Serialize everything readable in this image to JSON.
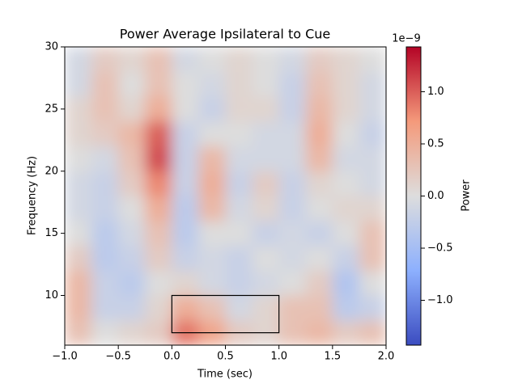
{
  "chart_data": {
    "type": "heatmap",
    "title": "Power Average Ipsilateral to Cue",
    "x_label": "Time (sec)",
    "y_label": "Frequency (Hz)",
    "colorbar_label": "Power",
    "colorbar_offset": "1e−9",
    "x": [
      -0.875,
      -0.625,
      -0.375,
      -0.125,
      0.125,
      0.375,
      0.625,
      0.875,
      1.125,
      1.375,
      1.625,
      1.875
    ],
    "y": [
      7,
      9,
      11,
      13,
      15,
      17,
      19,
      21,
      23,
      25,
      27,
      29
    ],
    "z": [
      [
        0.3,
        0.0,
        0.1,
        0.2,
        0.9,
        0.6,
        0.2,
        0.1,
        0.3,
        0.4,
        0.2,
        0.3
      ],
      [
        0.4,
        -0.2,
        -0.2,
        0.1,
        0.5,
        0.3,
        -0.1,
        0.1,
        0.3,
        0.3,
        -0.3,
        -0.2
      ],
      [
        0.4,
        -0.2,
        -0.3,
        0.0,
        0.1,
        -0.1,
        -0.2,
        -0.1,
        0.0,
        0.2,
        -0.4,
        0.0
      ],
      [
        0.2,
        -0.3,
        -0.2,
        0.2,
        -0.2,
        -0.1,
        -0.2,
        0.0,
        -0.1,
        0.0,
        -0.2,
        0.3
      ],
      [
        0.0,
        -0.3,
        -0.1,
        0.3,
        -0.3,
        0.0,
        0.0,
        -0.2,
        -0.1,
        -0.2,
        0.0,
        0.3
      ],
      [
        -0.1,
        -0.2,
        0.0,
        0.5,
        -0.3,
        0.4,
        -0.1,
        0.1,
        -0.2,
        0.0,
        0.1,
        0.1
      ],
      [
        -0.1,
        -0.2,
        0.2,
        0.8,
        -0.2,
        0.5,
        -0.2,
        0.2,
        -0.2,
        0.1,
        0.0,
        -0.1
      ],
      [
        0.0,
        -0.1,
        0.3,
        1.1,
        -0.2,
        0.4,
        -0.1,
        -0.1,
        -0.1,
        0.4,
        -0.1,
        -0.1
      ],
      [
        0.1,
        0.2,
        0.4,
        1.0,
        -0.2,
        0.0,
        0.0,
        -0.1,
        -0.1,
        0.5,
        0.0,
        -0.2
      ],
      [
        0.1,
        0.3,
        0.1,
        0.5,
        0.0,
        -0.2,
        0.1,
        0.1,
        -0.2,
        0.4,
        0.1,
        -0.1
      ],
      [
        -0.1,
        0.3,
        0.0,
        0.3,
        0.0,
        -0.1,
        0.1,
        0.0,
        -0.2,
        0.3,
        0.1,
        -0.1
      ],
      [
        -0.1,
        0.2,
        0.1,
        0.3,
        -0.1,
        0.0,
        0.1,
        0.0,
        -0.1,
        0.2,
        0.1,
        0.0
      ]
    ],
    "xlim": [
      -1,
      2
    ],
    "xticks": [
      {
        "value": -1,
        "label": "−1.0"
      },
      {
        "value": -0.5,
        "label": "−0.5"
      },
      {
        "value": 0,
        "label": "0.0"
      },
      {
        "value": 0.5,
        "label": "0.5"
      },
      {
        "value": 1,
        "label": "1.0"
      },
      {
        "value": 1.5,
        "label": "1.5"
      },
      {
        "value": 2,
        "label": "2.0"
      }
    ],
    "ylim": [
      6,
      30
    ],
    "yticks": [
      10,
      15,
      20,
      25,
      30
    ],
    "clim": [
      -1.43,
      1.43
    ],
    "cticks": [
      {
        "value": -1,
        "label": "−1.0"
      },
      {
        "value": -0.5,
        "label": "−0.5"
      },
      {
        "value": 0,
        "label": "0.0"
      },
      {
        "value": 0.5,
        "label": "0.5"
      },
      {
        "value": 1,
        "label": "1.0"
      }
    ],
    "colormap": [
      "#3b4cc0",
      "#8db0fe",
      "#dddddd",
      "#f49a7b",
      "#b40426"
    ],
    "annotations": [
      {
        "x": [
          0,
          1
        ],
        "y": [
          7,
          10
        ]
      }
    ]
  }
}
